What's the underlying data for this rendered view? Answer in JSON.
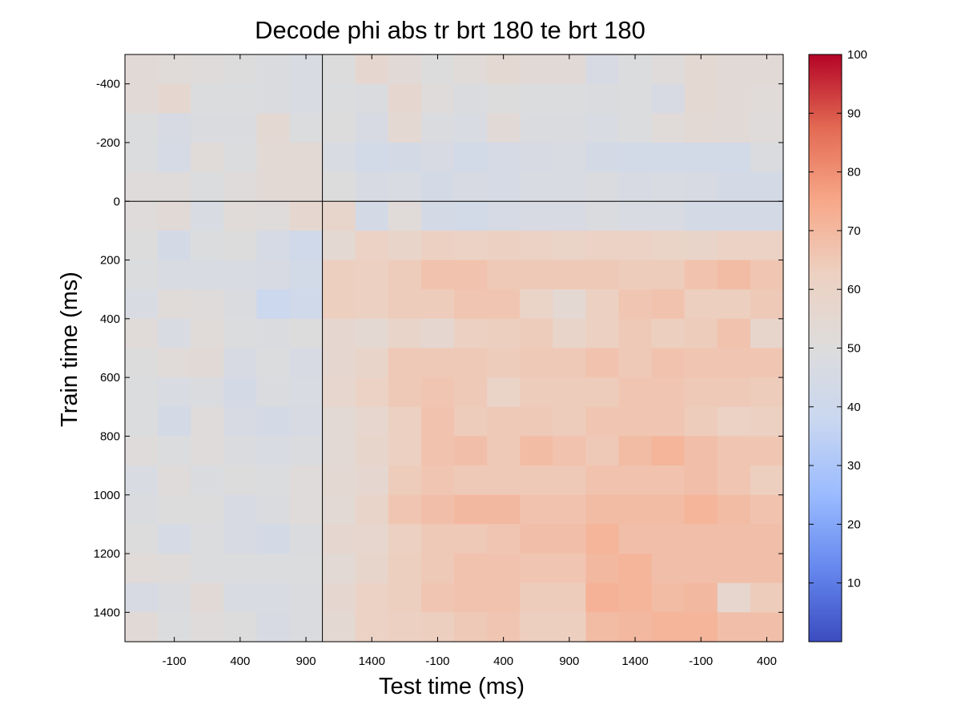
{
  "chart_data": {
    "type": "heatmap",
    "title": "Decode phi abs tr brt 180 te brt 180",
    "xlabel": "Test time (ms)",
    "ylabel": "Train time (ms)",
    "x_tick_labels": [
      "-100",
      "400",
      "900",
      "1400",
      "-100",
      "400",
      "900",
      "1400",
      "-100",
      "400"
    ],
    "y_tick_labels": [
      "-400",
      "-200",
      "0",
      "200",
      "400",
      "600",
      "800",
      "1000",
      "1200",
      "1400"
    ],
    "colorbar": {
      "ticks": [
        "10",
        "20",
        "30",
        "40",
        "50",
        "60",
        "70",
        "80",
        "90",
        "100"
      ],
      "range": [
        0,
        100
      ],
      "colormap": "cool-warm",
      "colors": [
        "#3b4cc0",
        "#6688ee",
        "#9abbff",
        "#c9d7f0",
        "#dddcdc",
        "#edd1c2",
        "#f7a889",
        "#e36a53",
        "#b40426"
      ]
    },
    "markers": {
      "vertical_line_column": 5.5,
      "horizontal_line_row": 4.5
    },
    "grid": false,
    "values": [
      [
        53,
        52,
        51,
        50,
        48,
        47,
        50,
        56,
        53,
        50,
        52,
        55,
        53,
        53,
        46,
        49,
        51,
        55,
        53,
        53
      ],
      [
        53,
        56,
        49,
        49,
        48,
        47,
        49,
        48,
        56,
        51,
        48,
        50,
        49,
        49,
        48,
        49,
        46,
        55,
        53,
        52
      ],
      [
        49,
        46,
        48,
        48,
        55,
        49,
        50,
        46,
        55,
        48,
        47,
        53,
        48,
        48,
        47,
        49,
        52,
        54,
        53,
        51
      ],
      [
        49,
        45,
        52,
        49,
        54,
        54,
        47,
        43,
        44,
        46,
        43,
        45,
        46,
        47,
        44,
        43,
        43,
        43,
        43,
        48
      ],
      [
        51,
        51,
        49,
        51,
        54,
        54,
        50,
        46,
        47,
        44,
        46,
        45,
        47,
        47,
        48,
        46,
        47,
        46,
        44,
        44
      ],
      [
        51,
        53,
        47,
        52,
        51,
        56,
        58,
        44,
        52,
        44,
        43,
        45,
        46,
        46,
        48,
        47,
        47,
        44,
        44,
        44
      ],
      [
        50,
        44,
        49,
        50,
        45,
        42,
        55,
        61,
        59,
        62,
        61,
        62,
        61,
        60,
        61,
        61,
        60,
        59,
        61,
        61
      ],
      [
        49,
        47,
        47,
        47,
        46,
        43,
        63,
        62,
        64,
        67,
        67,
        65,
        65,
        65,
        65,
        64,
        64,
        67,
        69,
        66
      ],
      [
        47,
        52,
        51,
        48,
        39,
        42,
        63,
        62,
        64,
        64,
        66,
        66,
        60,
        55,
        62,
        66,
        67,
        63,
        63,
        65
      ],
      [
        52,
        47,
        52,
        49,
        48,
        50,
        56,
        55,
        59,
        56,
        62,
        63,
        64,
        59,
        62,
        65,
        63,
        64,
        67,
        58
      ],
      [
        50,
        52,
        53,
        46,
        49,
        46,
        56,
        59,
        65,
        65,
        65,
        64,
        65,
        65,
        67,
        65,
        67,
        66,
        66,
        66
      ],
      [
        49,
        47,
        48,
        44,
        48,
        47,
        57,
        61,
        65,
        66,
        65,
        60,
        64,
        64,
        64,
        66,
        66,
        65,
        65,
        64
      ],
      [
        49,
        44,
        51,
        46,
        44,
        46,
        54,
        57,
        62,
        67,
        64,
        65,
        65,
        64,
        66,
        66,
        66,
        64,
        61,
        62
      ],
      [
        51,
        49,
        51,
        48,
        47,
        48,
        54,
        58,
        62,
        67,
        68,
        65,
        69,
        67,
        65,
        69,
        71,
        68,
        66,
        66
      ],
      [
        47,
        51,
        48,
        50,
        49,
        51,
        55,
        56,
        64,
        66,
        65,
        65,
        65,
        65,
        67,
        67,
        67,
        68,
        66,
        63
      ],
      [
        48,
        50,
        50,
        46,
        48,
        51,
        54,
        59,
        66,
        68,
        70,
        70,
        67,
        67,
        69,
        69,
        69,
        71,
        69,
        67
      ],
      [
        50,
        45,
        49,
        46,
        44,
        48,
        56,
        57,
        62,
        65,
        65,
        66,
        68,
        68,
        71,
        68,
        68,
        68,
        68,
        68
      ],
      [
        52,
        51,
        49,
        49,
        49,
        49,
        54,
        58,
        63,
        65,
        67,
        67,
        66,
        66,
        70,
        71,
        68,
        68,
        68,
        68
      ],
      [
        46,
        48,
        53,
        47,
        47,
        48,
        56,
        61,
        63,
        66,
        67,
        67,
        64,
        64,
        72,
        71,
        69,
        70,
        57,
        64
      ],
      [
        53,
        49,
        51,
        50,
        46,
        48,
        55,
        61,
        62,
        63,
        65,
        66,
        63,
        63,
        69,
        70,
        71,
        71,
        68,
        68
      ]
    ]
  }
}
